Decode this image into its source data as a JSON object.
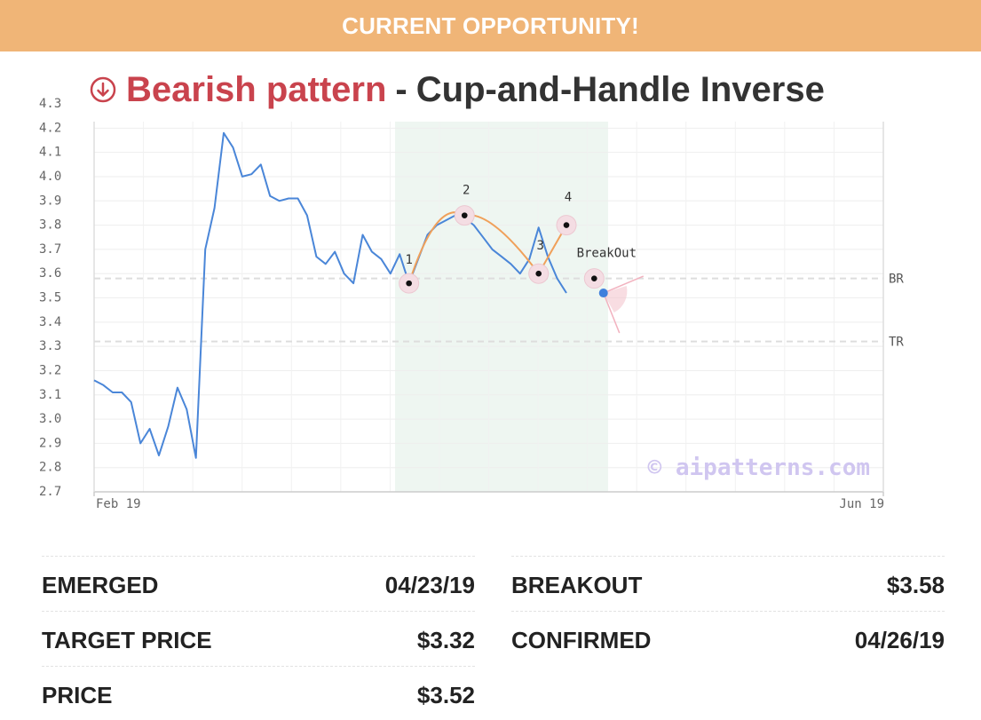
{
  "banner": {
    "text": "CURRENT OPPORTUNITY!"
  },
  "title": {
    "pattern_type": "Bearish pattern",
    "separator": "-",
    "pattern_name": "Cup-and-Handle Inverse",
    "icon": "arrow-down-circle-icon"
  },
  "colors": {
    "banner": "#f0b577",
    "bearish": "#c9434d",
    "price_line": "#4a86d8",
    "pattern_line": "#f0a05a",
    "pattern_zone": "#eef6f1"
  },
  "chart_data": {
    "type": "line",
    "title": "",
    "xlabel": "",
    "ylabel": "",
    "x_tick_labels": [
      "Feb 19",
      "Jun 19"
    ],
    "y_ticks": [
      "2.7",
      "2.8",
      "2.9",
      "3.0",
      "3.1",
      "3.2",
      "3.3",
      "3.4",
      "3.5",
      "3.6",
      "3.7",
      "3.8",
      "3.9",
      "4.0",
      "4.1",
      "4.2",
      "4.3"
    ],
    "ylim": [
      2.7,
      4.3
    ],
    "grid": true,
    "watermark": "© aipatterns.com",
    "series": [
      {
        "values": [
          3.16,
          3.14,
          3.11,
          3.11,
          3.07,
          2.9,
          2.96,
          2.85,
          2.97,
          3.13,
          3.04,
          2.84,
          3.7,
          3.87,
          4.18,
          4.12,
          4.0,
          4.01,
          4.05,
          3.92,
          3.9,
          3.91,
          3.91,
          3.84,
          3.67,
          3.64,
          3.69,
          3.6,
          3.56,
          3.76,
          3.69,
          3.66,
          3.6,
          3.68,
          3.56,
          3.66,
          3.76,
          3.8,
          3.82,
          3.84,
          3.83,
          3.8,
          3.75,
          3.7,
          3.67,
          3.64,
          3.6,
          3.66,
          3.79,
          3.67,
          3.58,
          3.52
        ]
      }
    ],
    "pattern": {
      "zone": {
        "start_index": 32.5,
        "end_index": 55.5
      },
      "points": [
        {
          "label": "1",
          "index": 34,
          "value": 3.56
        },
        {
          "label": "2",
          "index": 40,
          "value": 3.84
        },
        {
          "label": "3",
          "index": 48,
          "value": 3.6
        },
        {
          "label": "4",
          "index": 51,
          "value": 3.8
        },
        {
          "label": "BreakOut",
          "index": 54,
          "value": 3.58
        }
      ],
      "current": {
        "index": 55,
        "value": 3.52
      }
    },
    "levels": [
      {
        "label": "BR",
        "value": 3.58
      },
      {
        "label": "TR",
        "value": 3.32
      }
    ]
  },
  "stats": {
    "emerged": {
      "label": "EMERGED",
      "value": "04/23/19"
    },
    "target_price": {
      "label": "TARGET PRICE",
      "value": "$3.32"
    },
    "price": {
      "label": "PRICE",
      "value": "$3.52"
    },
    "breakout": {
      "label": "BREAKOUT",
      "value": "$3.58"
    },
    "confirmed": {
      "label": "CONFIRMED",
      "value": "04/26/19"
    }
  }
}
